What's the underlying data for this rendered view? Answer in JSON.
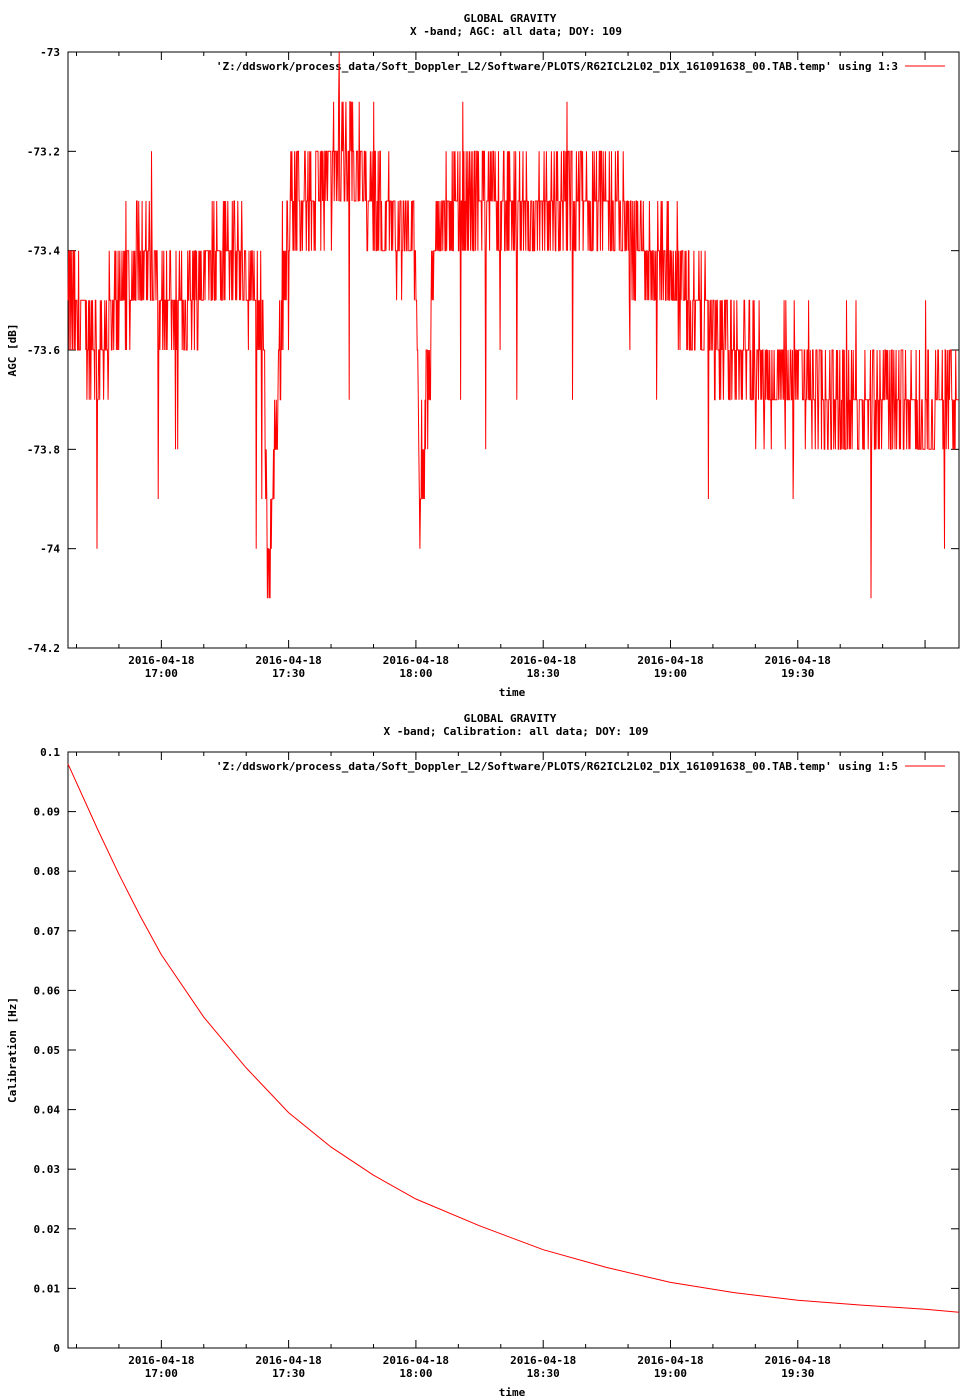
{
  "series_color": "#ff0000",
  "chart_data": [
    {
      "type": "line",
      "title": "GLOBAL GRAVITY",
      "subtitle": "X -band; AGC: all data; DOY: 109",
      "xlabel": "time",
      "ylabel": "AGC [dB]",
      "ylim": [
        -74.2,
        -73.0
      ],
      "yticks": [
        -73,
        -73.2,
        -73.4,
        -73.6,
        -73.8,
        -74,
        -74.2
      ],
      "ytick_labels": [
        "-73",
        "-73.2",
        "-73.4",
        "-73.6",
        "-73.8",
        "-74",
        "-74.2"
      ],
      "xlim": [
        "16:38",
        "20:08"
      ],
      "xticks": [
        {
          "date": "2016-04-18",
          "time": "17:00",
          "x": "17:00"
        },
        {
          "date": "2016-04-18",
          "time": "17:30",
          "x": "17:30"
        },
        {
          "date": "2016-04-18",
          "time": "18:00",
          "x": "18:00"
        },
        {
          "date": "2016-04-18",
          "time": "18:30",
          "x": "18:30"
        },
        {
          "date": "2016-04-18",
          "time": "19:00",
          "x": "19:00"
        },
        {
          "date": "2016-04-18",
          "time": "19:30",
          "x": "19:30"
        }
      ],
      "legend": "top-right",
      "series": [
        {
          "name": "'Z:/ddswork/process_data/Soft_Doppler_L2/Software/PLOTS/R62ICL2L02_D1X_161091638_00.TAB.temp' using 1:3",
          "x": [
            "16:38",
            "16:45",
            "16:50",
            "16:55",
            "17:00",
            "17:05",
            "17:10",
            "17:15",
            "17:20",
            "17:24",
            "17:25",
            "17:30",
            "17:35",
            "17:40",
            "17:45",
            "17:50",
            "17:55",
            "18:00",
            "18:01",
            "18:05",
            "18:10",
            "18:15",
            "18:20",
            "18:25",
            "18:30",
            "18:35",
            "18:40",
            "18:45",
            "18:50",
            "18:55",
            "19:00",
            "19:05",
            "19:10",
            "19:15",
            "19:20",
            "19:25",
            "19:30",
            "19:35",
            "19:40",
            "19:45",
            "19:50",
            "19:55",
            "20:00",
            "20:05",
            "20:08"
          ],
          "y": [
            -73.5,
            -73.6,
            -73.5,
            -73.4,
            -73.5,
            -73.5,
            -73.45,
            -73.4,
            -73.45,
            -73.5,
            -74.05,
            -73.3,
            -73.3,
            -73.25,
            -73.2,
            -73.3,
            -73.35,
            -73.4,
            -73.9,
            -73.35,
            -73.3,
            -73.3,
            -73.3,
            -73.35,
            -73.35,
            -73.3,
            -73.3,
            -73.3,
            -73.35,
            -73.4,
            -73.45,
            -73.5,
            -73.55,
            -73.6,
            -73.65,
            -73.65,
            -73.65,
            -73.7,
            -73.7,
            -73.7,
            -73.7,
            -73.7,
            -73.75,
            -73.7,
            -73.7
          ]
        }
      ]
    },
    {
      "type": "line",
      "title": "GLOBAL GRAVITY",
      "subtitle": "X -band; Calibration: all data; DOY: 109",
      "xlabel": "time",
      "ylabel": "Calibration [Hz]",
      "ylim": [
        0,
        0.1
      ],
      "yticks": [
        0.1,
        0.09,
        0.08,
        0.07,
        0.06,
        0.05,
        0.04,
        0.03,
        0.02,
        0.01,
        0
      ],
      "ytick_labels": [
        "0.1",
        "0.09",
        "0.08",
        "0.07",
        "0.06",
        "0.05",
        "0.04",
        "0.03",
        "0.02",
        "0.01",
        "0"
      ],
      "xlim": [
        "16:38",
        "20:08"
      ],
      "xticks": [
        {
          "date": "2016-04-18",
          "time": "17:00",
          "x": "17:00"
        },
        {
          "date": "2016-04-18",
          "time": "17:30",
          "x": "17:30"
        },
        {
          "date": "2016-04-18",
          "time": "18:00",
          "x": "18:00"
        },
        {
          "date": "2016-04-18",
          "time": "18:30",
          "x": "18:30"
        },
        {
          "date": "2016-04-18",
          "time": "19:00",
          "x": "19:00"
        },
        {
          "date": "2016-04-18",
          "time": "19:30",
          "x": "19:30"
        }
      ],
      "legend": "top-right",
      "series": [
        {
          "name": "'Z:/ddswork/process_data/Soft_Doppler_L2/Software/PLOTS/R62ICL2L02_D1X_161091638_00.TAB.temp' using 1:5",
          "x": [
            "16:38",
            "16:45",
            "16:50",
            "16:55",
            "17:00",
            "17:10",
            "17:20",
            "17:30",
            "17:40",
            "17:50",
            "18:00",
            "18:15",
            "18:30",
            "18:45",
            "19:00",
            "19:15",
            "19:30",
            "19:45",
            "20:00",
            "20:08"
          ],
          "y": [
            0.098,
            0.087,
            0.0795,
            0.0725,
            0.066,
            0.0555,
            0.047,
            0.0395,
            0.0337,
            0.029,
            0.025,
            0.0205,
            0.0165,
            0.0135,
            0.011,
            0.0093,
            0.008,
            0.0072,
            0.0065,
            0.006
          ]
        }
      ]
    }
  ]
}
